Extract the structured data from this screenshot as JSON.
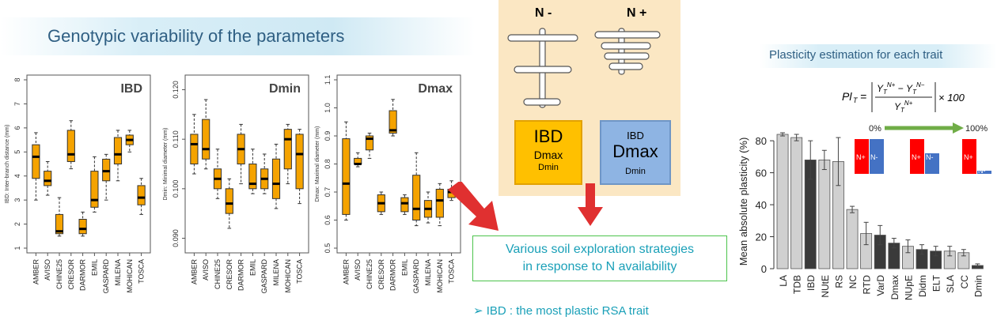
{
  "header": {
    "title": "Genotypic variability of the parameters"
  },
  "genotypes": [
    "AMBER",
    "AVISO",
    "CHINE25",
    "CRESOR",
    "DARMOR",
    "EMIL",
    "GASPARD",
    "MILENA",
    "MOHICAN",
    "TOSCA"
  ],
  "chart_data": [
    {
      "type": "boxplot",
      "title": "IBD",
      "ylabel": "IBD: Inter-branch distance (mm)",
      "ylim": [
        1,
        8
      ],
      "ticks": [
        1,
        2,
        3,
        4,
        5,
        6,
        7,
        8
      ],
      "categories": [
        "AMBER",
        "AVISO",
        "CHINE25",
        "CRESOR",
        "DARMOR",
        "EMIL",
        "GASPARD",
        "MILENA",
        "MOHICAN",
        "TOSCA"
      ],
      "boxes": [
        {
          "whislo": 3.0,
          "q1": 3.9,
          "med": 4.8,
          "q3": 5.3,
          "whishi": 5.8
        },
        {
          "whislo": 3.2,
          "q1": 3.6,
          "med": 3.8,
          "q3": 4.2,
          "whishi": 4.6
        },
        {
          "whislo": 1.5,
          "q1": 1.6,
          "med": 1.7,
          "q3": 2.4,
          "whishi": 3.1
        },
        {
          "whislo": 4.3,
          "q1": 4.6,
          "med": 4.9,
          "q3": 5.9,
          "whishi": 6.3
        },
        {
          "whislo": 1.5,
          "q1": 1.6,
          "med": 1.8,
          "q3": 2.2,
          "whishi": 2.5
        },
        {
          "whislo": 2.5,
          "q1": 2.7,
          "med": 3.0,
          "q3": 4.2,
          "whishi": 4.8
        },
        {
          "whislo": 3.0,
          "q1": 3.8,
          "med": 4.2,
          "q3": 4.7,
          "whishi": 4.9
        },
        {
          "whislo": 3.8,
          "q1": 4.5,
          "med": 4.9,
          "q3": 5.6,
          "whishi": 5.9
        },
        {
          "whislo": 5.0,
          "q1": 5.3,
          "med": 5.5,
          "q3": 5.7,
          "whishi": 5.9
        },
        {
          "whislo": 2.4,
          "q1": 2.8,
          "med": 3.1,
          "q3": 3.6,
          "whishi": 3.9
        }
      ]
    },
    {
      "type": "boxplot",
      "title": "Dmin",
      "ylabel": "Dmin: Minimal diameter (mm)",
      "ylim": [
        0.088,
        0.122
      ],
      "ticks": [
        0.09,
        0.1,
        0.11,
        0.12
      ],
      "tick_labels": [
        "0.090",
        "0.100",
        "0.110",
        "0.120"
      ],
      "categories": [
        "AMBER",
        "AVISO",
        "CHINE25",
        "CRESOR",
        "DARMOR",
        "EMIL",
        "GASPARD",
        "MILENA",
        "MOHICAN",
        "TOSCA"
      ],
      "boxes": [
        {
          "whislo": 0.103,
          "q1": 0.105,
          "med": 0.109,
          "q3": 0.111,
          "whishi": 0.115
        },
        {
          "whislo": 0.104,
          "q1": 0.106,
          "med": 0.108,
          "q3": 0.114,
          "whishi": 0.118
        },
        {
          "whislo": 0.098,
          "q1": 0.1,
          "med": 0.102,
          "q3": 0.104,
          "whishi": 0.108
        },
        {
          "whislo": 0.092,
          "q1": 0.095,
          "med": 0.097,
          "q3": 0.1,
          "whishi": 0.102
        },
        {
          "whislo": 0.101,
          "q1": 0.105,
          "med": 0.108,
          "q3": 0.111,
          "whishi": 0.113
        },
        {
          "whislo": 0.099,
          "q1": 0.1,
          "med": 0.101,
          "q3": 0.105,
          "whishi": 0.108
        },
        {
          "whislo": 0.099,
          "q1": 0.1,
          "med": 0.102,
          "q3": 0.104,
          "whishi": 0.107
        },
        {
          "whislo": 0.096,
          "q1": 0.098,
          "med": 0.101,
          "q3": 0.106,
          "whishi": 0.109
        },
        {
          "whislo": 0.101,
          "q1": 0.104,
          "med": 0.11,
          "q3": 0.112,
          "whishi": 0.113
        },
        {
          "whislo": 0.097,
          "q1": 0.1,
          "med": 0.107,
          "q3": 0.111,
          "whishi": 0.112
        }
      ]
    },
    {
      "type": "boxplot",
      "title": "Dmax",
      "ylabel": "Dmax: Maximal diameter (mm)",
      "ylim": [
        0.5,
        1.1
      ],
      "ticks": [
        0.5,
        0.6,
        0.7,
        0.8,
        0.9,
        1.0,
        1.1
      ],
      "tick_labels": [
        "0.5",
        "0.6",
        "0.7",
        "0.8",
        "0.9",
        "1.0",
        "1.1"
      ],
      "categories": [
        "AMBER",
        "AVISO",
        "CHINE25",
        "CRESOR",
        "DARMOR",
        "EMIL",
        "GASPARD",
        "MILENA",
        "MOHICAN",
        "TOSCA"
      ],
      "boxes": [
        {
          "whislo": 0.6,
          "q1": 0.62,
          "med": 0.73,
          "q3": 0.89,
          "whishi": 0.95
        },
        {
          "whislo": 0.79,
          "q1": 0.8,
          "med": 0.8,
          "q3": 0.82,
          "whishi": 0.84
        },
        {
          "whislo": 0.82,
          "q1": 0.85,
          "med": 0.89,
          "q3": 0.9,
          "whishi": 0.91
        },
        {
          "whislo": 0.62,
          "q1": 0.63,
          "med": 0.66,
          "q3": 0.69,
          "whishi": 0.7
        },
        {
          "whislo": 0.9,
          "q1": 0.91,
          "med": 0.92,
          "q3": 0.99,
          "whishi": 1.03
        },
        {
          "whislo": 0.62,
          "q1": 0.63,
          "med": 0.66,
          "q3": 0.68,
          "whishi": 0.69
        },
        {
          "whislo": 0.58,
          "q1": 0.6,
          "med": 0.64,
          "q3": 0.76,
          "whishi": 0.84
        },
        {
          "whislo": 0.59,
          "q1": 0.61,
          "med": 0.64,
          "q3": 0.67,
          "whishi": 0.7
        },
        {
          "whislo": 0.58,
          "q1": 0.61,
          "med": 0.67,
          "q3": 0.71,
          "whishi": 0.73
        },
        {
          "whislo": 0.67,
          "q1": 0.68,
          "med": 0.7,
          "q3": 0.71,
          "whishi": 0.74
        }
      ]
    },
    {
      "type": "bar",
      "title": "Plasticity estimation for each trait",
      "ylabel": "Mean absolute plasticity (%)",
      "ylim": [
        0,
        85
      ],
      "ticks": [
        0,
        20,
        40,
        60,
        80
      ],
      "categories": [
        "LA",
        "TDB",
        "IBD",
        "NUtE",
        "RS",
        "NC",
        "RTD",
        "VarD",
        "Dmax",
        "NUpE",
        "Didm",
        "ELT",
        "SLA",
        "CC",
        "Dmin"
      ],
      "values": [
        84,
        82,
        68,
        68,
        67,
        37,
        22,
        21,
        16,
        14,
        12,
        11,
        11,
        10,
        2
      ],
      "errors": [
        1,
        2,
        12,
        6,
        15,
        2,
        7,
        6,
        3,
        4,
        3,
        3,
        3,
        2,
        1
      ],
      "colors": [
        "#d0d0d0",
        "#d0d0d0",
        "#3a3a3a",
        "#d0d0d0",
        "#d0d0d0",
        "#d0d0d0",
        "#d0d0d0",
        "#3a3a3a",
        "#3a3a3a",
        "#d0d0d0",
        "#3a3a3a",
        "#3a3a3a",
        "#d0d0d0",
        "#d0d0d0",
        "#3a3a3a"
      ]
    }
  ],
  "diagram": {
    "n_minus": "N -",
    "n_plus": "N +",
    "n_minus_color": "#ed7d31",
    "n_plus_color": "#4472c4",
    "box_left": {
      "line1": "IBD",
      "line2": "Dmax",
      "line3": "Dmin"
    },
    "box_right": {
      "line1": "IBD",
      "line2": "Dmax",
      "line3": "Dmin"
    }
  },
  "strategy": {
    "line1": "Various soil exploration strategies",
    "line2": "in response to N availability"
  },
  "conclusion": "➢ IBD : the most plastic RSA trait",
  "plasticity": {
    "title": "Plasticity estimation for each trait",
    "formula_lhs": "Pl",
    "formula_sub": "T",
    "formula_mult": "× 100",
    "scale_start": "0%",
    "scale_end": "100%",
    "np_label": "N+",
    "nm_label": "N-"
  }
}
